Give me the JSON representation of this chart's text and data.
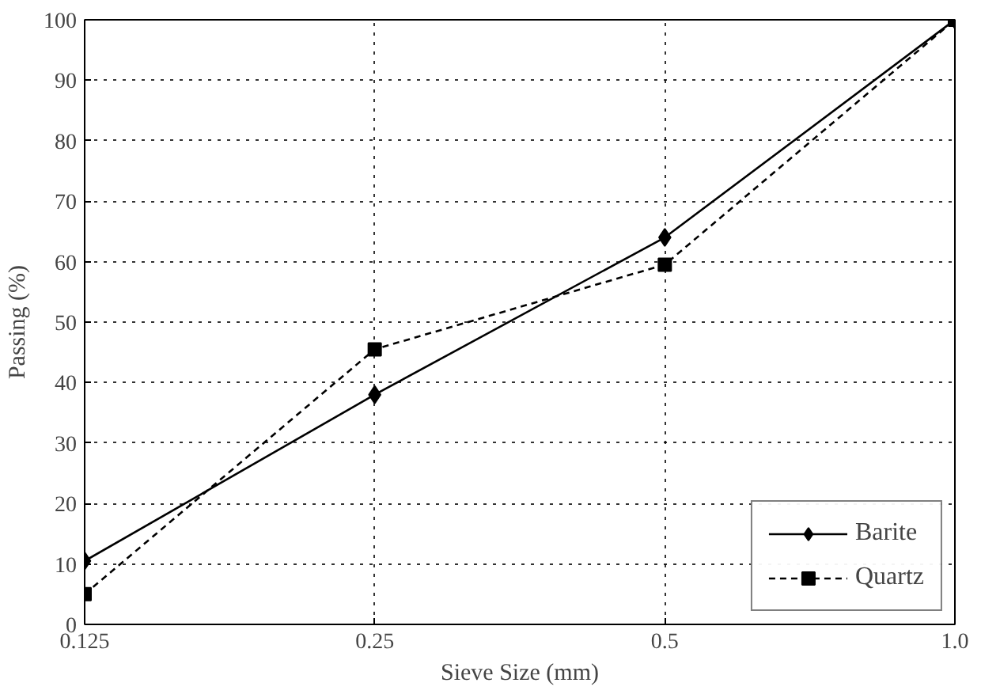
{
  "chart_data": {
    "type": "line",
    "xlabel": "Sieve Size (mm)",
    "ylabel": "Passing (%)",
    "log": "x",
    "x": [
      0.125,
      0.25,
      0.5,
      1.0
    ],
    "series": [
      {
        "name": "Barite",
        "color": "#000000",
        "marker": "diamond",
        "line_style": "solid",
        "values": [
          10.5,
          38,
          64,
          100
        ]
      },
      {
        "name": "Quartz",
        "color": "#000000",
        "marker": "square",
        "line_style": "dashed",
        "values": [
          5,
          45.5,
          59.5,
          100
        ]
      }
    ],
    "xlim": [
      0.125,
      1.0
    ],
    "xticks": [
      0.125,
      0.25,
      0.5,
      {
        "value": 1.0,
        "label": "1.0"
      }
    ],
    "ylim": [
      0,
      100
    ],
    "yticks": [
      0,
      10,
      20,
      30,
      40,
      50,
      60,
      70,
      80,
      90,
      100
    ],
    "grid": true,
    "legend": "bottom right"
  }
}
